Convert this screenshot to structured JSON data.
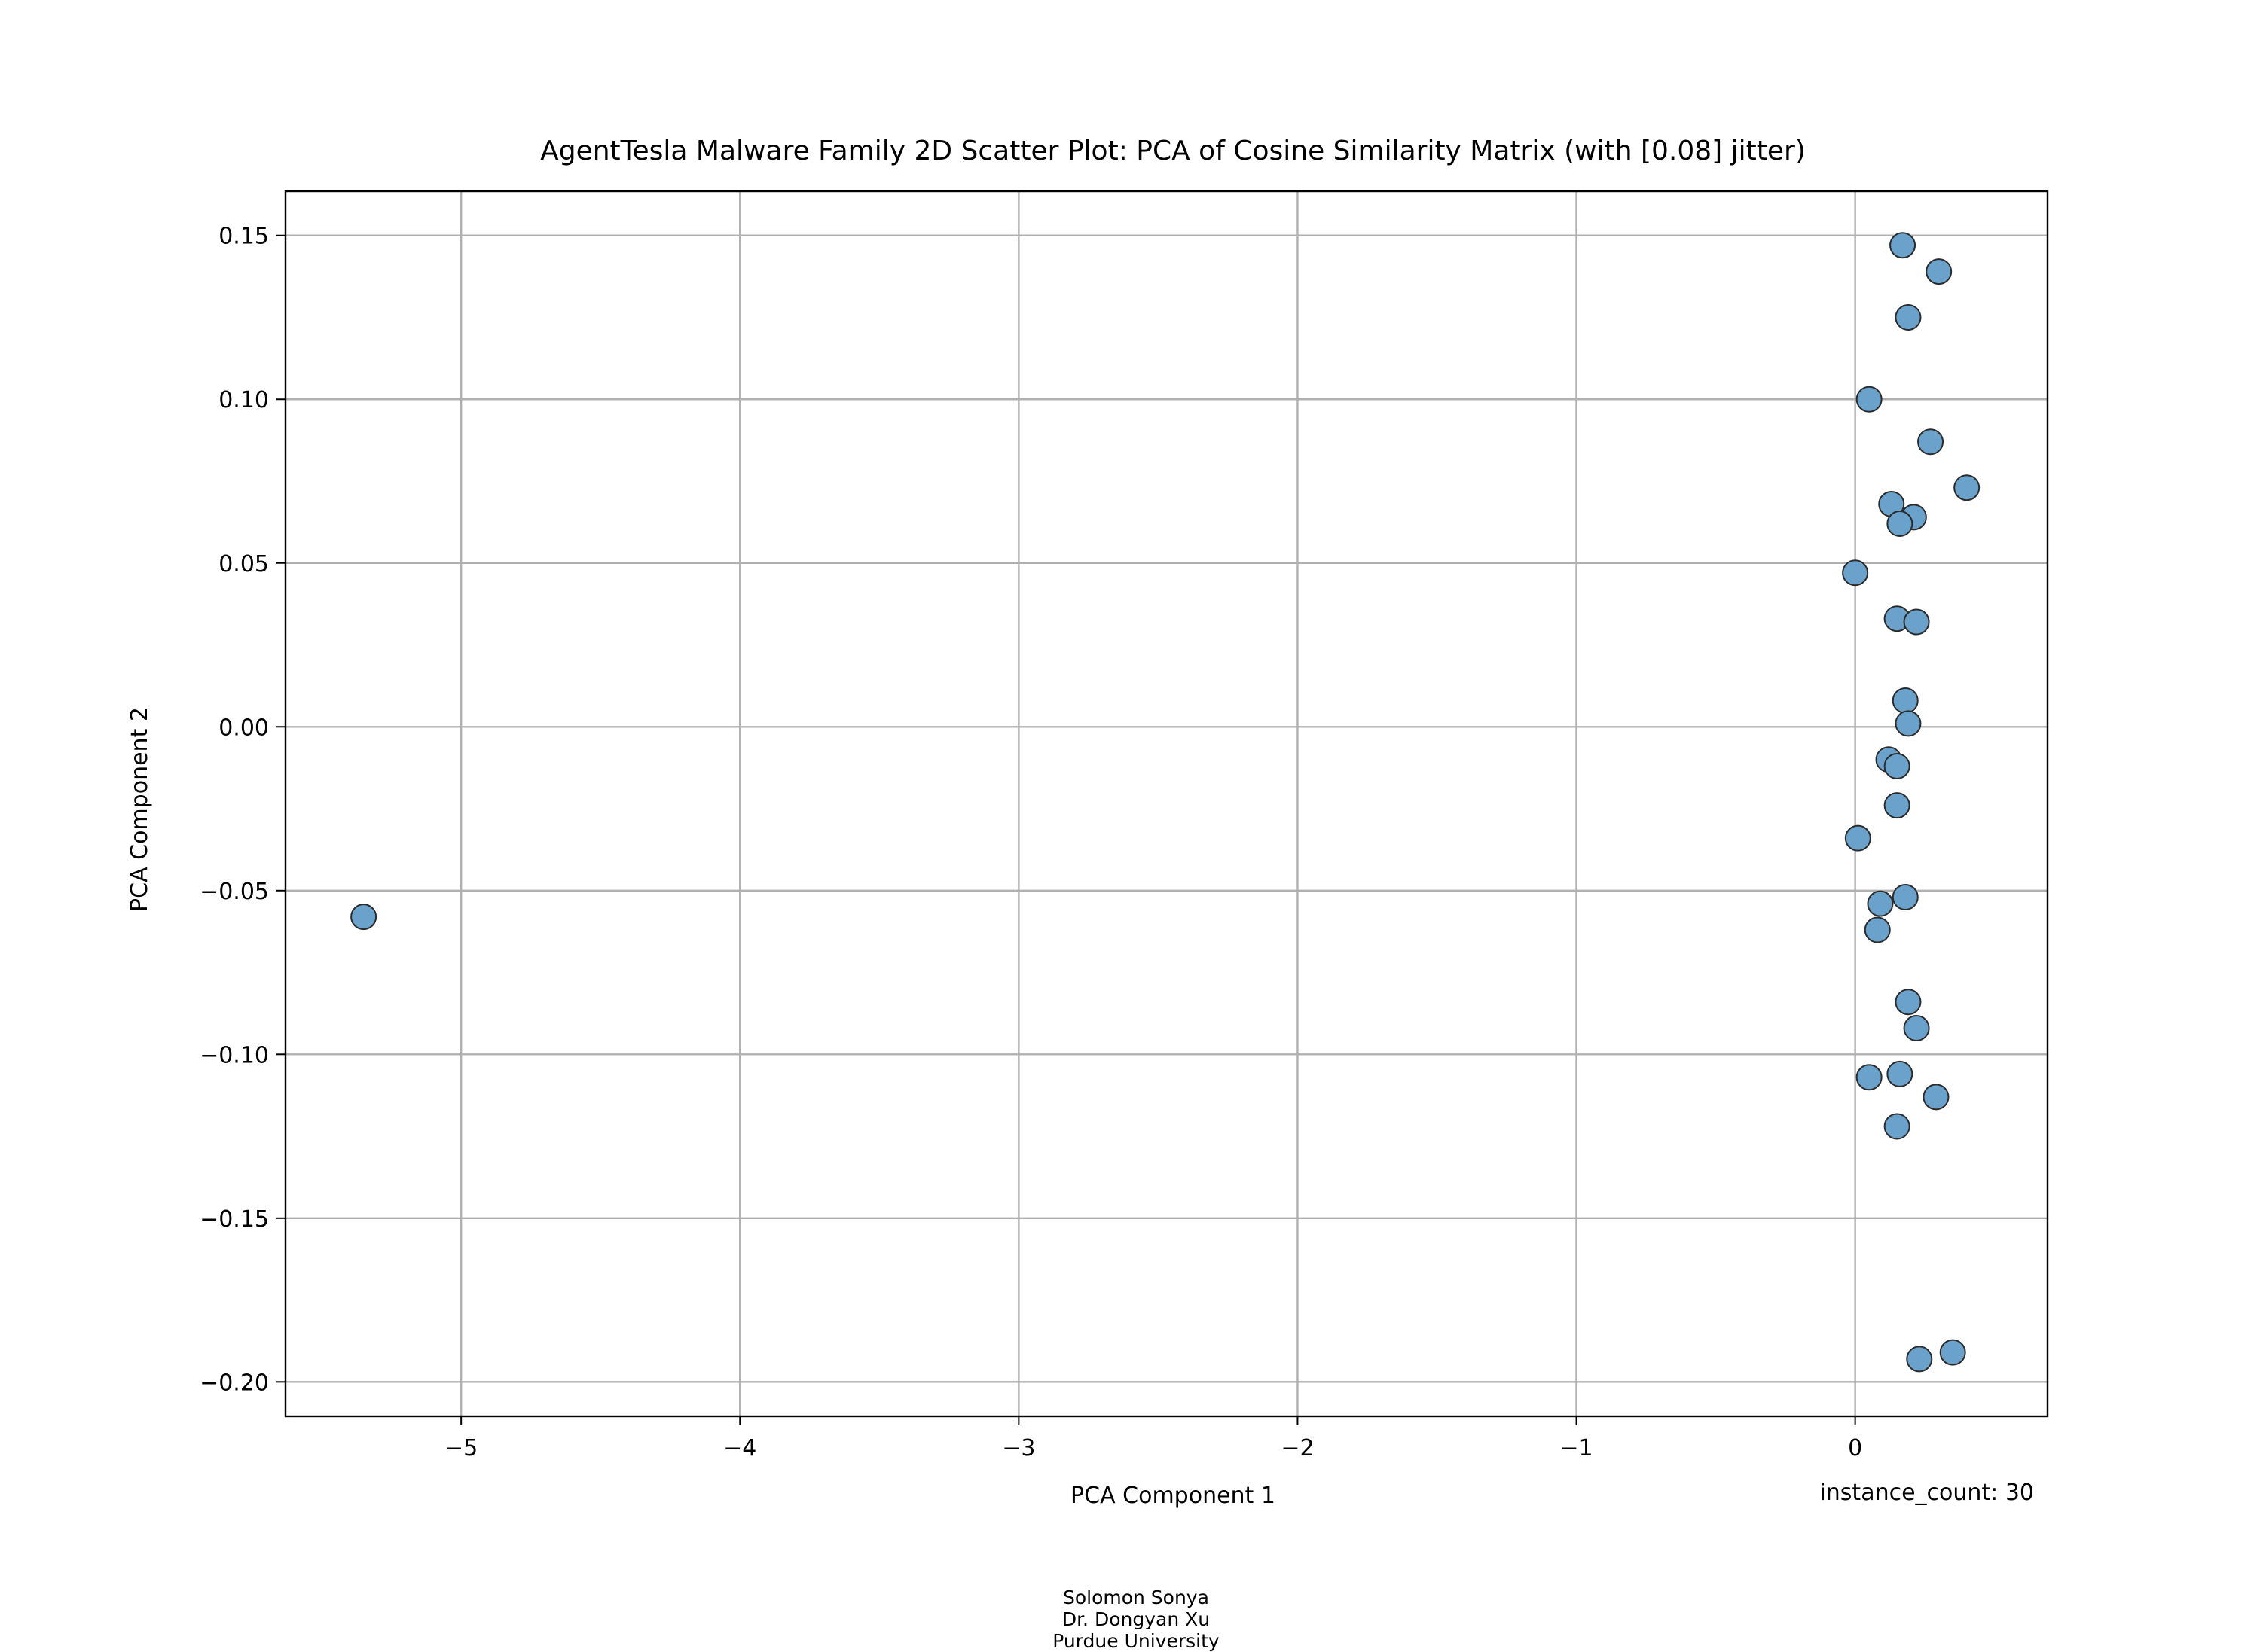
{
  "chart_data": {
    "type": "scatter",
    "title": "AgentTesla Malware Family 2D Scatter Plot: PCA of Cosine Similarity Matrix (with [0.08] jitter)",
    "xlabel": "PCA Component 1",
    "ylabel": "PCA Component 2",
    "xlim": [
      -5.63,
      0.69
    ],
    "ylim": [
      -0.2105,
      0.1635
    ],
    "x_ticks": [
      -5,
      -4,
      -3,
      -2,
      -1,
      0
    ],
    "y_ticks": [
      0.15,
      0.1,
      0.05,
      0.0,
      -0.05,
      -0.1,
      -0.15,
      -0.2
    ],
    "x_tick_labels": [
      "−5",
      "−4",
      "−3",
      "−2",
      "−1",
      "0"
    ],
    "y_tick_labels": [
      "0.15",
      "0.10",
      "0.05",
      "0.00",
      "−0.05",
      "−0.10",
      "−0.15",
      "−0.20"
    ],
    "grid": true,
    "marker_color": "#6aa2cc",
    "marker_edge_color": "#2b2b2b",
    "annotation": "instance_count: 30",
    "points": [
      {
        "x": 0.17,
        "y": 0.147
      },
      {
        "x": 0.3,
        "y": 0.139
      },
      {
        "x": 0.19,
        "y": 0.125
      },
      {
        "x": 0.05,
        "y": 0.1
      },
      {
        "x": 0.27,
        "y": 0.087
      },
      {
        "x": 0.4,
        "y": 0.073
      },
      {
        "x": 0.13,
        "y": 0.068
      },
      {
        "x": 0.21,
        "y": 0.064
      },
      {
        "x": 0.16,
        "y": 0.062
      },
      {
        "x": 0.0,
        "y": 0.047
      },
      {
        "x": 0.15,
        "y": 0.033
      },
      {
        "x": 0.22,
        "y": 0.032
      },
      {
        "x": 0.18,
        "y": 0.008
      },
      {
        "x": 0.19,
        "y": 0.001
      },
      {
        "x": 0.12,
        "y": -0.01
      },
      {
        "x": 0.15,
        "y": -0.012
      },
      {
        "x": 0.15,
        "y": -0.024
      },
      {
        "x": 0.01,
        "y": -0.034
      },
      {
        "x": -5.35,
        "y": -0.058
      },
      {
        "x": 0.18,
        "y": -0.052
      },
      {
        "x": 0.09,
        "y": -0.054
      },
      {
        "x": 0.08,
        "y": -0.062
      },
      {
        "x": 0.19,
        "y": -0.084
      },
      {
        "x": 0.22,
        "y": -0.092
      },
      {
        "x": 0.05,
        "y": -0.107
      },
      {
        "x": 0.16,
        "y": -0.106
      },
      {
        "x": 0.29,
        "y": -0.113
      },
      {
        "x": 0.15,
        "y": -0.122
      },
      {
        "x": 0.35,
        "y": -0.191
      },
      {
        "x": 0.23,
        "y": -0.193
      }
    ]
  },
  "footer": {
    "author1": "Solomon Sonya",
    "author2": "Dr. Dongyan Xu",
    "institution": "Purdue University"
  }
}
